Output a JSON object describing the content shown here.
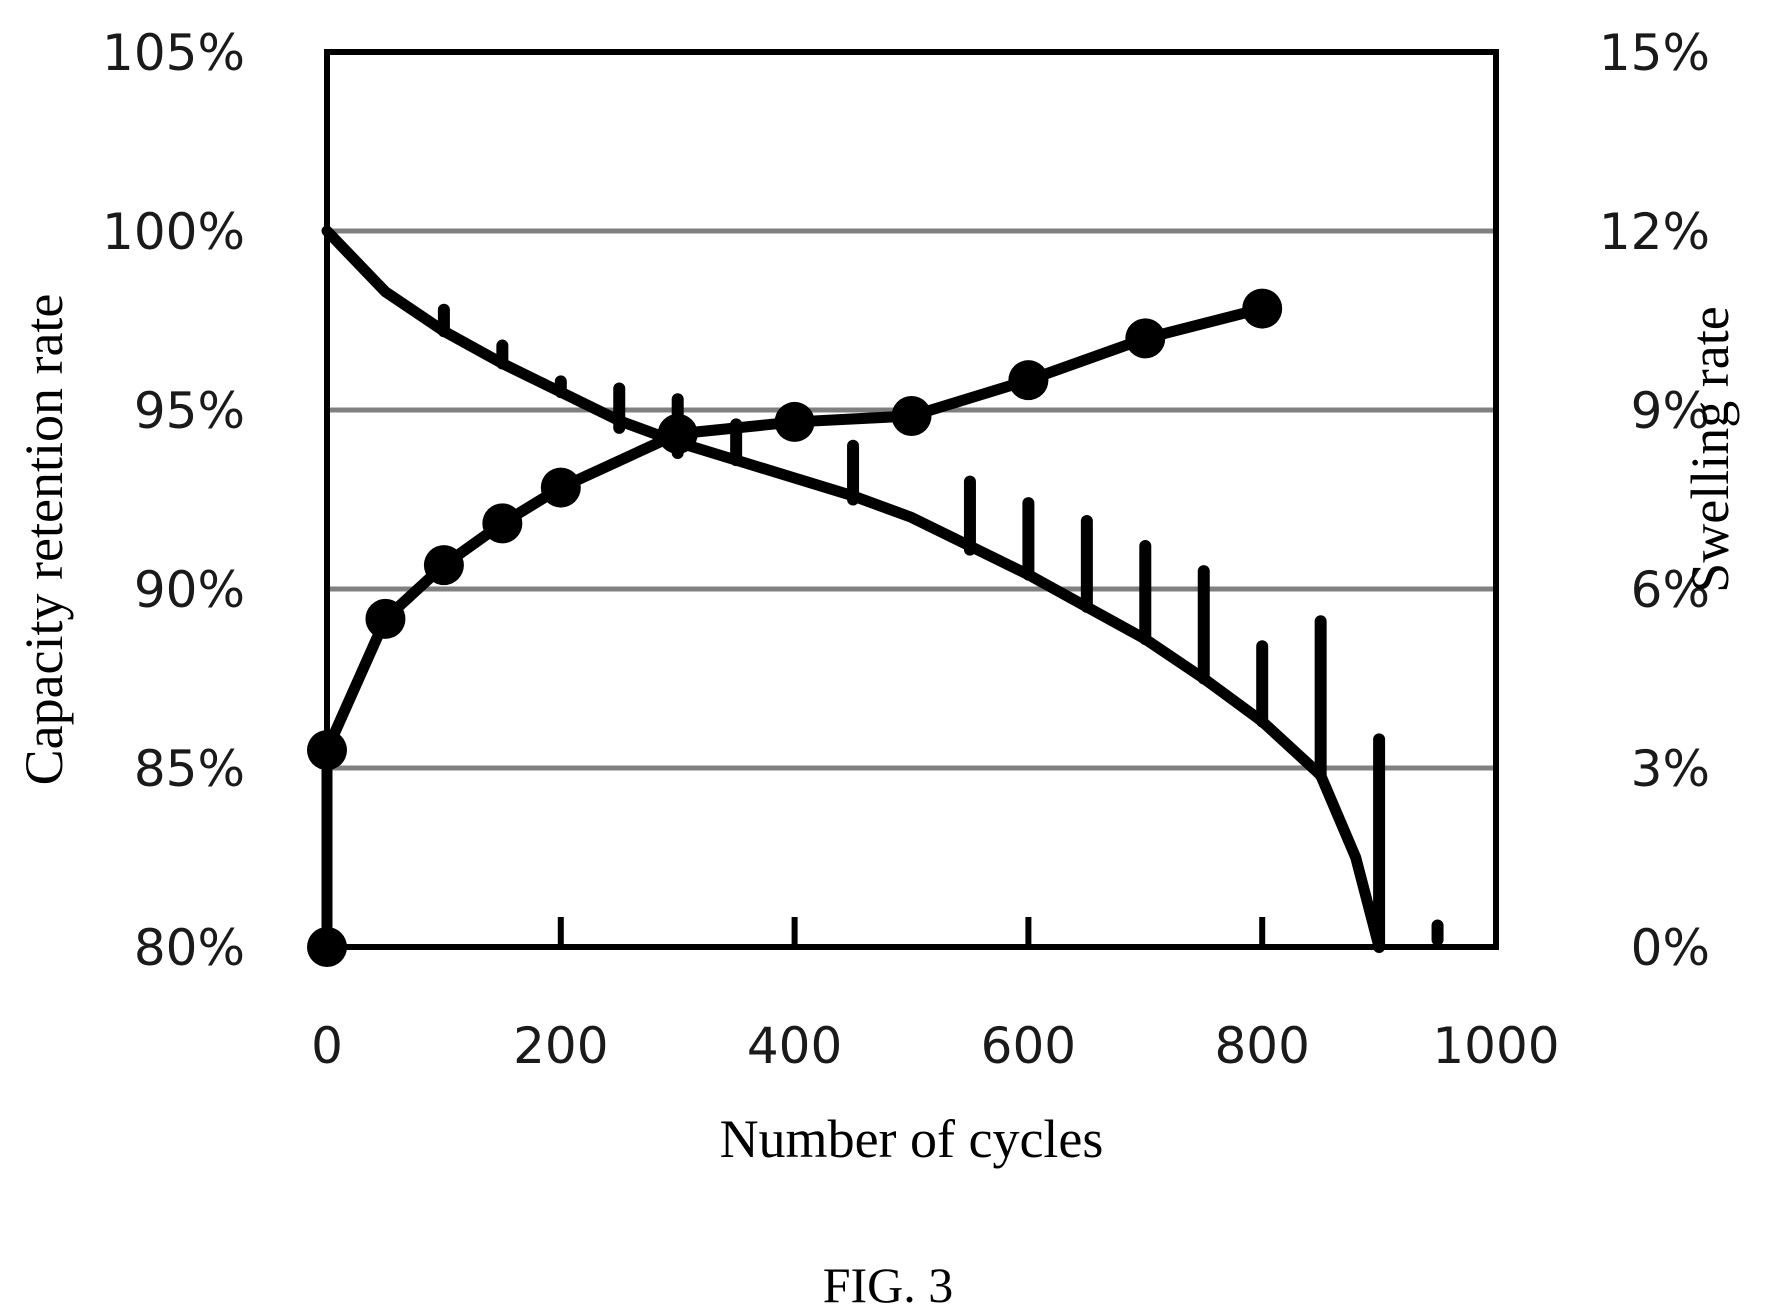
{
  "chart_data": {
    "type": "line",
    "caption": "FIG. 3",
    "xlabel": "Number of cycles",
    "ylabel_left": "Capacity retention rate",
    "ylabel_right": "Swelling rate",
    "xlim": [
      0,
      1000
    ],
    "ylim_left": [
      80,
      105
    ],
    "ylim_right": [
      0,
      15
    ],
    "x_ticks": [
      "0",
      "200",
      "400",
      "600",
      "800",
      "1000"
    ],
    "x_tick_values": [
      0,
      200,
      400,
      600,
      800,
      1000
    ],
    "y_left_ticks": [
      "80%",
      "85%",
      "90%",
      "95%",
      "100%",
      "105%"
    ],
    "y_left_tick_values": [
      80,
      85,
      90,
      95,
      100,
      105
    ],
    "y_right_ticks": [
      "0%",
      "3%",
      "6%",
      "9%",
      "12%",
      "15%"
    ],
    "y_right_tick_values": [
      0,
      3,
      6,
      9,
      12,
      15
    ],
    "grid": "horizontal",
    "legend": "none",
    "series": [
      {
        "axis": "left",
        "marker": "none",
        "x": [
          0,
          50,
          100,
          150,
          200,
          250,
          300,
          350,
          400,
          450,
          500,
          550,
          600,
          650,
          700,
          750,
          800,
          850,
          880,
          900
        ],
        "y": [
          100,
          98.3,
          97.2,
          96.3,
          95.5,
          94.7,
          94.1,
          93.6,
          93.1,
          92.6,
          92.0,
          91.2,
          90.4,
          89.5,
          88.6,
          87.5,
          86.3,
          84.8,
          82.5,
          80
        ]
      },
      {
        "axis": "right",
        "marker": "circle",
        "x": [
          0,
          0,
          50,
          100,
          150,
          200,
          300,
          400,
          500,
          600,
          700,
          800
        ],
        "y": [
          0,
          3.3,
          5.5,
          6.4,
          7.1,
          7.7,
          8.6,
          8.8,
          8.9,
          9.5,
          10.2,
          10.7
        ]
      }
    ],
    "spikes": {
      "axis": "left",
      "x": [
        100,
        150,
        200,
        250,
        300,
        350,
        450,
        550,
        600,
        650,
        700,
        750,
        800,
        850,
        900,
        950
      ],
      "top": [
        97.8,
        96.8,
        95.8,
        95.6,
        95.3,
        94.6,
        94.0,
        93.0,
        92.4,
        91.9,
        91.2,
        90.5,
        88.4,
        89.1,
        85.8,
        80.6
      ],
      "bottom": [
        97.2,
        96.3,
        95.5,
        94.5,
        93.8,
        93.6,
        92.5,
        91.1,
        90.4,
        89.5,
        88.6,
        87.5,
        86.3,
        84.8,
        80,
        80.2
      ]
    },
    "x_minor_ticks": [
      200,
      400,
      600,
      800
    ]
  }
}
